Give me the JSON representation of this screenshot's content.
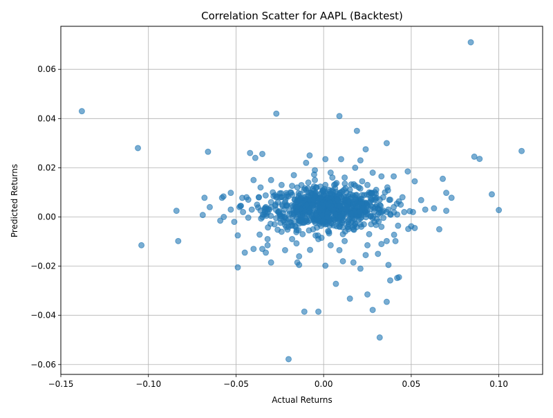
{
  "chart_data": {
    "type": "scatter",
    "title": "Correlation Scatter for AAPL (Backtest)",
    "xlabel": "Actual Returns",
    "ylabel": "Predicted Returns",
    "xlim": [
      -0.15,
      0.125
    ],
    "ylim": [
      -0.064,
      0.0775
    ],
    "xticks": [
      -0.15,
      -0.1,
      -0.05,
      0.0,
      0.05,
      0.1
    ],
    "xtick_labels": [
      "−0.15",
      "−0.10",
      "−0.05",
      "0.00",
      "0.05",
      "0.10"
    ],
    "yticks": [
      -0.06,
      -0.04,
      -0.02,
      0.0,
      0.02,
      0.04,
      0.06
    ],
    "ytick_labels": [
      "−0.06",
      "−0.04",
      "−0.02",
      "0.00",
      "0.02",
      "0.04",
      "0.06"
    ],
    "grid": true,
    "colors": {
      "point_fill": "#1f77b4",
      "point_alpha": 0.6
    },
    "points": [
      [
        0.084,
        0.071
      ],
      [
        -0.138,
        0.043
      ],
      [
        -0.027,
        0.042
      ],
      [
        0.009,
        0.041
      ],
      [
        0.019,
        0.035
      ],
      [
        0.036,
        0.03
      ],
      [
        -0.106,
        0.028
      ],
      [
        -0.066,
        0.0265
      ],
      [
        0.113,
        0.0268
      ],
      [
        0.086,
        0.0245
      ],
      [
        0.089,
        0.0236
      ],
      [
        -0.042,
        0.026
      ],
      [
        -0.035,
        0.0256
      ],
      [
        -0.039,
        0.024
      ],
      [
        -0.008,
        0.025
      ],
      [
        0.001,
        0.0235
      ],
      [
        0.01,
        0.0235
      ],
      [
        0.021,
        0.023
      ],
      [
        0.024,
        0.0275
      ],
      [
        0.018,
        0.02
      ],
      [
        0.048,
        0.0185
      ],
      [
        0.04,
        0.0165
      ],
      [
        0.052,
        0.0145
      ],
      [
        0.068,
        0.0155
      ],
      [
        0.096,
        0.0092
      ],
      [
        0.07,
        0.0098
      ],
      [
        0.073,
        0.0078
      ],
      [
        0.1,
        0.0028
      ],
      [
        0.07,
        0.0025
      ],
      [
        0.063,
        0.0035
      ],
      [
        0.058,
        0.003
      ],
      [
        0.051,
        0.002
      ],
      [
        -0.084,
        0.0025
      ],
      [
        -0.068,
        0.0078
      ],
      [
        -0.069,
        0.0008
      ],
      [
        -0.058,
        0.0078
      ],
      [
        -0.053,
        0.0098
      ],
      [
        -0.065,
        0.004
      ],
      [
        -0.048,
        0.004
      ],
      [
        -0.044,
        0.008
      ],
      [
        -0.104,
        -0.0115
      ],
      [
        -0.083,
        -0.0098
      ],
      [
        -0.049,
        -0.0205
      ],
      [
        -0.049,
        -0.0075
      ],
      [
        -0.045,
        -0.0145
      ],
      [
        -0.04,
        -0.013
      ],
      [
        -0.035,
        -0.013
      ],
      [
        -0.033,
        -0.0145
      ],
      [
        -0.03,
        -0.0185
      ],
      [
        -0.022,
        -0.0135
      ],
      [
        -0.015,
        -0.0185
      ],
      [
        -0.014,
        -0.0195
      ],
      [
        -0.014,
        -0.016
      ],
      [
        0.001,
        -0.0198
      ],
      [
        0.007,
        -0.0272
      ],
      [
        0.011,
        -0.018
      ],
      [
        0.021,
        -0.021
      ],
      [
        0.017,
        -0.0185
      ],
      [
        0.025,
        -0.0315
      ],
      [
        0.015,
        -0.0332
      ],
      [
        0.036,
        -0.0345
      ],
      [
        0.028,
        -0.0378
      ],
      [
        0.032,
        -0.049
      ],
      [
        -0.011,
        -0.0385
      ],
      [
        -0.003,
        -0.0385
      ],
      [
        -0.02,
        -0.0578
      ],
      [
        0.038,
        -0.0258
      ],
      [
        0.042,
        -0.0248
      ],
      [
        0.043,
        -0.0245
      ],
      [
        0.037,
        -0.0195
      ],
      [
        0.066,
        -0.005
      ],
      [
        0.052,
        -0.0045
      ],
      [
        0.05,
        -0.0038
      ],
      [
        0.031,
        -0.015
      ],
      [
        0.024,
        -0.0155
      ],
      [
        -0.059,
        -0.0015
      ],
      [
        -0.057,
        0.0
      ],
      [
        -0.051,
        -0.002
      ],
      [
        -0.053,
        0.003
      ],
      [
        -0.032,
        -0.009
      ],
      [
        -0.032,
        -0.0115
      ],
      [
        -0.02,
        -0.004
      ],
      [
        -0.018,
        -0.009
      ],
      [
        0.004,
        -0.0115
      ],
      [
        0.012,
        -0.0098
      ],
      [
        0.009,
        -0.0135
      ],
      [
        0.025,
        -0.0115
      ],
      [
        0.033,
        -0.011
      ],
      [
        0.036,
        -0.0098
      ],
      [
        0.041,
        -0.0098
      ],
      [
        -0.01,
        0.022
      ],
      [
        -0.005,
        0.019
      ],
      [
        0.004,
        0.018
      ],
      [
        0.012,
        0.016
      ],
      [
        0.022,
        0.0145
      ],
      [
        0.028,
        0.018
      ],
      [
        0.033,
        0.0165
      ],
      [
        -0.017,
        0.017
      ],
      [
        -0.024,
        0.013
      ],
      [
        -0.03,
        0.015
      ],
      [
        -0.04,
        0.015
      ],
      [
        -0.036,
        0.012
      ],
      [
        -0.043,
        0.007
      ],
      [
        -0.046,
        0.002
      ],
      [
        -0.038,
        0.005
      ],
      [
        -0.031,
        0.003
      ],
      [
        -0.027,
        0.008
      ],
      [
        -0.022,
        0.006
      ],
      [
        -0.019,
        0.01
      ],
      [
        -0.016,
        0.004
      ],
      [
        -0.013,
        0.007
      ],
      [
        -0.01,
        0.011
      ],
      [
        -0.008,
        0.003
      ],
      [
        -0.006,
        0.008
      ],
      [
        -0.004,
        0.012
      ],
      [
        -0.002,
        0.005
      ],
      [
        0.0,
        0.009
      ],
      [
        0.002,
        0.002
      ],
      [
        0.004,
        0.007
      ],
      [
        0.006,
        0.013
      ],
      [
        0.008,
        0.004
      ],
      [
        0.01,
        0.01
      ],
      [
        0.012,
        0.006
      ],
      [
        0.014,
        0.001
      ],
      [
        0.016,
        0.008
      ],
      [
        0.018,
        0.004
      ],
      [
        0.02,
        0.012
      ],
      [
        0.022,
        0.006
      ],
      [
        0.024,
        0.002
      ],
      [
        0.026,
        0.009
      ],
      [
        0.028,
        0.004
      ],
      [
        0.03,
        0.011
      ],
      [
        0.032,
        0.003
      ],
      [
        0.034,
        0.008
      ],
      [
        0.036,
        0.002
      ],
      [
        0.038,
        0.007
      ],
      [
        0.04,
        0.004
      ],
      [
        0.042,
        0.001
      ],
      [
        0.044,
        0.005
      ],
      [
        0.046,
        0.002
      ],
      [
        -0.028,
        -0.003
      ],
      [
        -0.024,
        -0.006
      ],
      [
        -0.02,
        -0.001
      ],
      [
        -0.016,
        -0.004
      ],
      [
        -0.012,
        -0.007
      ],
      [
        -0.009,
        -0.002
      ],
      [
        -0.006,
        -0.005
      ],
      [
        -0.003,
        -0.009
      ],
      [
        0.001,
        -0.003
      ],
      [
        0.003,
        -0.006
      ],
      [
        0.006,
        -0.001
      ],
      [
        0.009,
        -0.004
      ],
      [
        0.011,
        -0.007
      ],
      [
        0.014,
        -0.002
      ],
      [
        0.017,
        -0.005
      ],
      [
        0.02,
        -0.001
      ],
      [
        0.023,
        -0.003
      ],
      [
        0.026,
        -0.007
      ],
      [
        0.029,
        -0.002
      ],
      [
        0.033,
        -0.004
      ],
      [
        -0.034,
        0.001
      ],
      [
        -0.03,
        0.006
      ],
      [
        -0.026,
        0.002
      ],
      [
        -0.021,
        0.009
      ],
      [
        -0.017,
        0.001
      ],
      [
        -0.011,
        0.005
      ],
      [
        -0.007,
        0.001
      ],
      [
        -0.001,
        0.003
      ],
      [
        0.003,
        0.011
      ],
      [
        0.007,
        0.002
      ],
      [
        0.013,
        0.004
      ],
      [
        0.019,
        0.002
      ],
      [
        0.025,
        0.005
      ],
      [
        0.031,
        0.001
      ],
      [
        0.037,
        0.003
      ],
      [
        -0.041,
        0.003
      ],
      [
        -0.037,
        0.008
      ],
      [
        -0.033,
        0.004
      ],
      [
        -0.029,
        0.01
      ],
      [
        -0.025,
        0.001
      ],
      [
        -0.015,
        0.012
      ],
      [
        -0.005,
        0.015
      ],
      [
        0.005,
        0.016
      ],
      [
        0.015,
        0.011
      ],
      [
        0.025,
        0.013
      ],
      [
        0.035,
        0.01
      ],
      [
        0.045,
        0.008
      ],
      [
        -0.012,
        0.002
      ],
      [
        0.008,
        0.0
      ],
      [
        0.018,
        -0.003
      ]
    ]
  }
}
